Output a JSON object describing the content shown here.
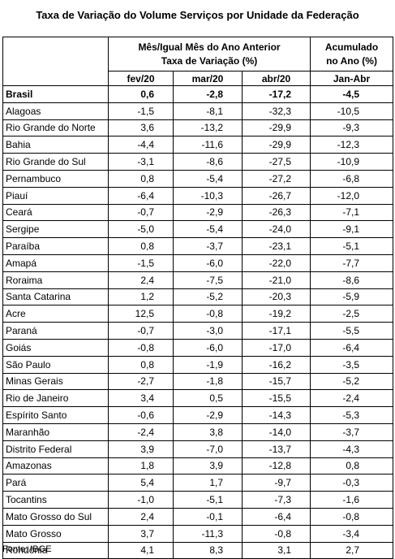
{
  "title": "Taxa de Variação do Volume Serviços por Unidade da Federação",
  "header": {
    "group": "Mês/Igual Mês do Ano Anterior",
    "group_sub": "Taxa de Variação (%)",
    "accum": "Acumulado",
    "accum_sub": "no Ano (%)",
    "months": [
      "fev/20",
      "mar/20",
      "abr/20"
    ],
    "accum_period": "Jan-Abr"
  },
  "rows": [
    [
      "Brasil",
      "0,6",
      "-2,8",
      "-17,2",
      "-4,5"
    ],
    [
      "Alagoas",
      "-1,5",
      "-8,1",
      "-32,3",
      "-10,5"
    ],
    [
      "Rio Grande do Norte",
      "3,6",
      "-13,2",
      "-29,9",
      "-9,3"
    ],
    [
      "Bahia",
      "-4,4",
      "-11,6",
      "-29,9",
      "-12,3"
    ],
    [
      "Rio Grande do Sul",
      "-3,1",
      "-8,6",
      "-27,5",
      "-10,9"
    ],
    [
      "Pernambuco",
      "0,8",
      "-5,4",
      "-27,2",
      "-6,8"
    ],
    [
      "Piauí",
      "-6,4",
      "-10,3",
      "-26,7",
      "-12,0"
    ],
    [
      "Ceará",
      "-0,7",
      "-2,9",
      "-26,3",
      "-7,1"
    ],
    [
      "Sergipe",
      "-5,0",
      "-5,4",
      "-24,0",
      "-9,1"
    ],
    [
      "Paraíba",
      "0,8",
      "-3,7",
      "-23,1",
      "-5,1"
    ],
    [
      "Amapá",
      "-1,5",
      "-6,0",
      "-22,0",
      "-7,7"
    ],
    [
      "Roraima",
      "2,4",
      "-7,5",
      "-21,0",
      "-8,6"
    ],
    [
      "Santa Catarina",
      "1,2",
      "-5,2",
      "-20,3",
      "-5,9"
    ],
    [
      "Acre",
      "12,5",
      "-0,8",
      "-19,2",
      "-2,5"
    ],
    [
      "Paraná",
      "-0,7",
      "-3,0",
      "-17,1",
      "-5,5"
    ],
    [
      "Goiás",
      "-0,8",
      "-6,0",
      "-17,0",
      "-6,4"
    ],
    [
      "São Paulo",
      "0,8",
      "-1,9",
      "-16,2",
      "-3,5"
    ],
    [
      "Minas Gerais",
      "-2,7",
      "-1,8",
      "-15,7",
      "-5,2"
    ],
    [
      "Rio de Janeiro",
      "3,4",
      "0,5",
      "-15,5",
      "-2,4"
    ],
    [
      "Espírito Santo",
      "-0,6",
      "-2,9",
      "-14,3",
      "-5,3"
    ],
    [
      "Maranhão",
      "-2,4",
      "3,8",
      "-14,0",
      "-3,7"
    ],
    [
      "Distrito Federal",
      "3,9",
      "-7,0",
      "-13,7",
      "-4,3"
    ],
    [
      "Amazonas",
      "1,8",
      "3,9",
      "-12,8",
      "0,8"
    ],
    [
      "Pará",
      "5,4",
      "1,7",
      "-9,7",
      "-0,3"
    ],
    [
      "Tocantins",
      "-1,0",
      "-5,1",
      "-7,3",
      "-1,6"
    ],
    [
      "Mato Grosso do Sul",
      "2,4",
      "-0,1",
      "-6,4",
      "-0,8"
    ],
    [
      "Mato Grosso",
      "3,7",
      "-11,3",
      "-0,8",
      "-3,4"
    ],
    [
      "Rondônia",
      "4,1",
      "8,3",
      "3,1",
      "2,7"
    ]
  ],
  "source": "Fonte: IBGE"
}
